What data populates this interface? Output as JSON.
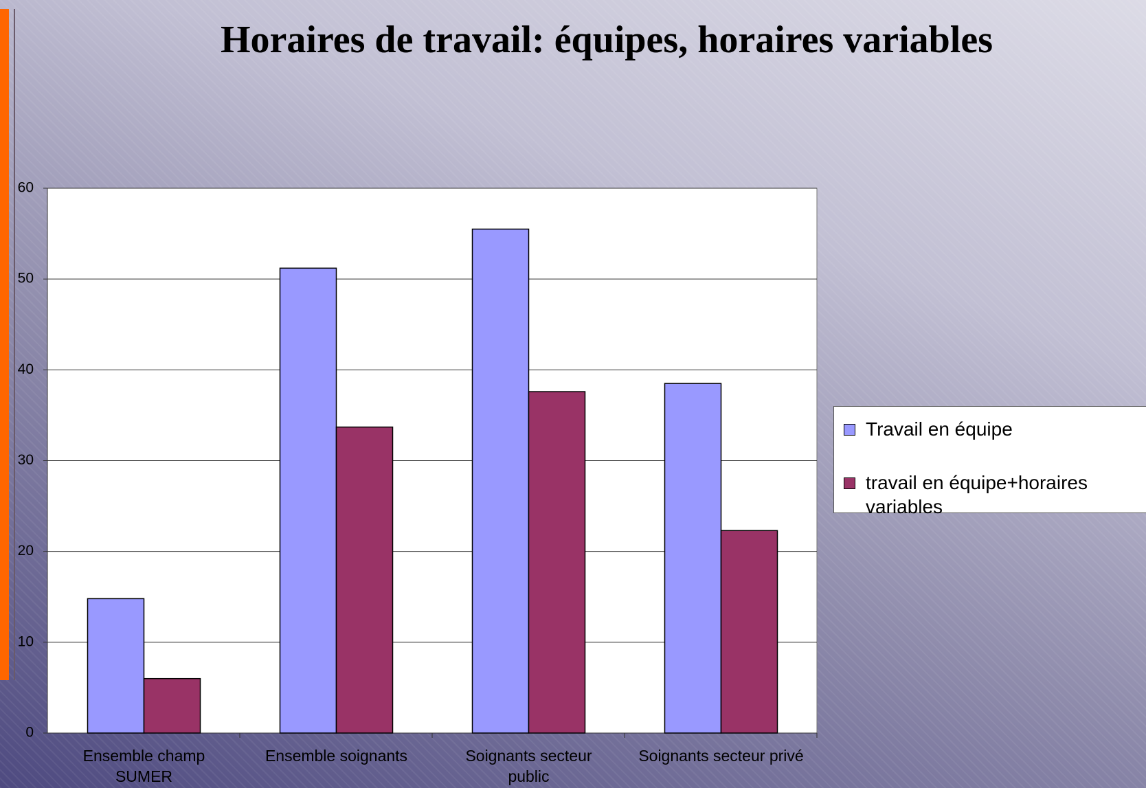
{
  "chart_data": {
    "type": "bar",
    "title": "Horaires de travail: équipes, horaires variables",
    "categories": [
      "Ensemble champ SUMER",
      "Ensemble soignants",
      "Soignants secteur public",
      "Soignants secteur privé"
    ],
    "series": [
      {
        "name": "Travail en équipe",
        "color": "#9999ff",
        "values": [
          14.8,
          51.2,
          55.5,
          38.5
        ]
      },
      {
        "name": "travail en équipe+horaires variables",
        "color": "#993366",
        "values": [
          6,
          33.7,
          37.6,
          22.3
        ]
      }
    ],
    "ylim": [
      0,
      60
    ],
    "yticks": [
      0,
      10,
      20,
      30,
      40,
      50,
      60
    ],
    "grid": true,
    "legend": "right"
  }
}
